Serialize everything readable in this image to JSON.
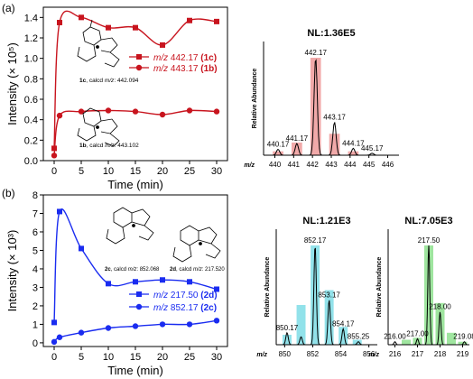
{
  "colors": {
    "red": "#c8141e",
    "blue": "#1a2cf0",
    "pink_fill": "#ee9a9a",
    "cyan_fill": "#7fdde6",
    "green_fill": "#8ee08e",
    "spectrum_line": "#000000"
  },
  "panel_a_label": "(a)",
  "panel_b_label": "(b)",
  "chart_data": [
    {
      "type": "line",
      "panel": "a",
      "xlabel": "Time (min)",
      "ylabel": "Intensity (× 10⁵)",
      "xlim": [
        -2,
        32
      ],
      "ylim": [
        0,
        1.5
      ],
      "xticks": [
        "0",
        "5",
        "10",
        "15",
        "20",
        "25",
        "30"
      ],
      "yticks": [
        "0.0",
        "0.2",
        "0.4",
        "0.6",
        "0.8",
        "1.0",
        "1.2",
        "1.4"
      ],
      "series": [
        {
          "name": "m/z 442.17 (1c)",
          "marker": "square",
          "x": [
            0,
            1,
            5,
            10,
            15,
            20,
            25,
            30
          ],
          "y": [
            0.12,
            1.35,
            1.4,
            1.3,
            1.3,
            1.13,
            1.37,
            1.36
          ]
        },
        {
          "name": "m/z 443.17 (1b)",
          "marker": "circle",
          "x": [
            0,
            1,
            5,
            10,
            15,
            20,
            25,
            30
          ],
          "y": [
            0.05,
            0.44,
            0.48,
            0.49,
            0.48,
            0.45,
            0.49,
            0.48
          ]
        }
      ],
      "legend": [
        {
          "italic": "m/z",
          "rest": " 442.17 ",
          "bold": "(1c)"
        },
        {
          "italic": "m/z",
          "rest": " 443.17 ",
          "bold": "(1b)"
        }
      ],
      "annotations": [
        {
          "bold": "1c",
          "rest": ", calcd ",
          "italic": "m/z",
          "tail": ": 442.094"
        },
        {
          "bold": "1b",
          "rest": ", calcd ",
          "italic": "m/z",
          "tail": ": 443.102"
        }
      ]
    },
    {
      "type": "line",
      "panel": "b",
      "xlabel": "Time (min)",
      "ylabel": "Intensity (× 10³)",
      "xlim": [
        -2,
        32
      ],
      "ylim": [
        -0.2,
        8
      ],
      "xticks": [
        "0",
        "5",
        "10",
        "15",
        "20",
        "25",
        "30"
      ],
      "yticks": [
        "0",
        "1",
        "2",
        "3",
        "4",
        "5",
        "6",
        "7",
        "8"
      ],
      "series": [
        {
          "name": "m/z 217.50 (2d)",
          "marker": "square",
          "x": [
            0,
            1,
            5,
            10,
            15,
            20,
            25,
            30
          ],
          "y": [
            1.1,
            7.1,
            5.1,
            3.2,
            3.3,
            3.4,
            3.3,
            2.9
          ]
        },
        {
          "name": "m/z 852.17 (2c)",
          "marker": "circle",
          "x": [
            0,
            1,
            5,
            10,
            15,
            20,
            25,
            30
          ],
          "y": [
            0.05,
            0.3,
            0.55,
            0.8,
            0.9,
            1.0,
            1.0,
            1.2
          ]
        }
      ],
      "legend": [
        {
          "italic": "m/z",
          "rest": " 217.50 ",
          "bold": "(2d)"
        },
        {
          "italic": "m/z",
          "rest": " 852.17 ",
          "bold": "(2c)"
        }
      ],
      "annotations": [
        {
          "bold": "2c",
          "rest": ", calcd ",
          "italic": "m/z",
          "tail": ": 852.068"
        },
        {
          "bold": "2d",
          "rest": ", calcd ",
          "italic": "m/z",
          "tail": ": 217.520"
        }
      ]
    },
    {
      "type": "line",
      "panel": "a-spectrum",
      "title": "NL:1.36E5",
      "ylabel": "Relative Abundance",
      "xlabel": "m/z",
      "xlim": [
        439.4,
        446.6
      ],
      "xticks": [
        "440",
        "441",
        "442",
        "443",
        "444",
        "445",
        "446"
      ],
      "peaks": [
        {
          "mz": 440.17,
          "rel": 0.06,
          "label": "440.17"
        },
        {
          "mz": 441.17,
          "rel": 0.12,
          "label": "441.17"
        },
        {
          "mz": 442.17,
          "rel": 1.0,
          "label": "442.17"
        },
        {
          "mz": 443.17,
          "rel": 0.34,
          "label": "443.17"
        },
        {
          "mz": 444.17,
          "rel": 0.07,
          "label": "444.17"
        },
        {
          "mz": 445.17,
          "rel": 0.02,
          "label": "445.17"
        }
      ],
      "bars": [
        {
          "mz": 440.17,
          "rel": 0.04
        },
        {
          "mz": 441.17,
          "rel": 0.13
        },
        {
          "mz": 442.17,
          "rel": 1.0
        },
        {
          "mz": 443.17,
          "rel": 0.22
        },
        {
          "mz": 444.17,
          "rel": 0.04
        }
      ]
    },
    {
      "type": "line",
      "panel": "b-spectrum-1",
      "title": "NL:1.21E3",
      "ylabel": "Relative Abundance",
      "xlabel": "m/z",
      "xlim": [
        849.4,
        856.6
      ],
      "xticks": [
        "850",
        "852",
        "854",
        "856"
      ],
      "peaks": [
        {
          "mz": 850.17,
          "rel": 0.12,
          "label": "850.17"
        },
        {
          "mz": 851.17,
          "rel": 0.08,
          "label": ""
        },
        {
          "mz": 852.17,
          "rel": 1.0,
          "label": "852.17"
        },
        {
          "mz": 853.17,
          "rel": 0.45,
          "label": "853.17"
        },
        {
          "mz": 854.17,
          "rel": 0.16,
          "label": "854.17"
        },
        {
          "mz": 855.25,
          "rel": 0.03,
          "label": "855.25"
        }
      ],
      "bars": [
        {
          "mz": 850.17,
          "rel": 0.1
        },
        {
          "mz": 851.17,
          "rel": 0.4
        },
        {
          "mz": 852.17,
          "rel": 1.0
        },
        {
          "mz": 853.17,
          "rel": 0.55
        },
        {
          "mz": 854.17,
          "rel": 0.18
        },
        {
          "mz": 855.17,
          "rel": 0.05
        }
      ]
    },
    {
      "type": "line",
      "panel": "b-spectrum-2",
      "title": "NL:7.05E3",
      "ylabel": "Relative Abundance",
      "xlabel": "m/z",
      "xlim": [
        215.7,
        219.3
      ],
      "xticks": [
        "216",
        "217",
        "218",
        "219"
      ],
      "peaks": [
        {
          "mz": 216.0,
          "rel": 0.03,
          "label": "216.00"
        },
        {
          "mz": 217.0,
          "rel": 0.06,
          "label": "217.00"
        },
        {
          "mz": 217.5,
          "rel": 1.0,
          "label": "217.50"
        },
        {
          "mz": 218.0,
          "rel": 0.33,
          "label": "218.00"
        },
        {
          "mz": 219.08,
          "rel": 0.03,
          "label": "219.08"
        }
      ],
      "bars": [
        {
          "mz": 216.5,
          "rel": 0.05
        },
        {
          "mz": 217.0,
          "rel": 0.07
        },
        {
          "mz": 217.5,
          "rel": 1.0
        },
        {
          "mz": 218.0,
          "rel": 0.42
        },
        {
          "mz": 218.5,
          "rel": 0.12
        },
        {
          "mz": 219.0,
          "rel": 0.03
        }
      ]
    }
  ]
}
